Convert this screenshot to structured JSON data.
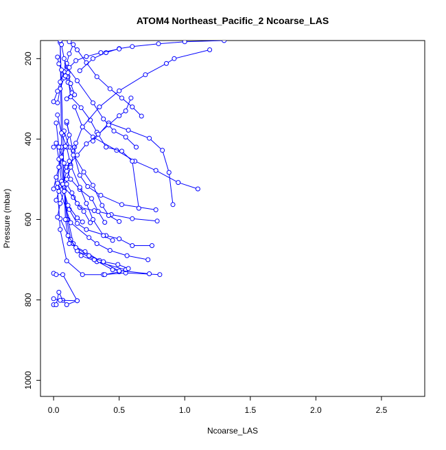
{
  "chart_data": {
    "type": "line",
    "title": "ATOM4 Northeast_Pacific_2 Ncoarse_LAS",
    "xlabel": "Ncoarse_LAS",
    "ylabel": "Pressure (mbar)",
    "xlim": [
      -0.1,
      2.83
    ],
    "ylim": [
      1040,
      155
    ],
    "y_reversed": true,
    "grid": false,
    "x_ticks": [
      0,
      0.5,
      1,
      1.5,
      2,
      2.5
    ],
    "x_tick_labels": [
      "0.0",
      "0.5",
      "1.0",
      "1.5",
      "2.0",
      "2.5"
    ],
    "y_ticks": [
      200,
      400,
      600,
      800,
      1000
    ],
    "y_tick_labels": [
      "200",
      "400",
      "600",
      "800",
      "1000"
    ],
    "series_color": "#0000ff",
    "series": [
      {
        "x": [
          0.0,
          0.02,
          0.04,
          0.07,
          0.1,
          0.18
        ],
        "y": [
          812,
          812,
          781,
          801,
          812,
          802
        ]
      },
      {
        "x": [
          0.0,
          0.02,
          0.07,
          0.18,
          0.05,
          0.0
        ],
        "y": [
          734,
          737,
          737,
          802,
          801,
          797
        ]
      },
      {
        "x": [
          0.81,
          0.55,
          0.38,
          0.22,
          0.1,
          0.05,
          0.03,
          0.05
        ],
        "y": [
          737,
          733,
          737,
          737,
          703,
          625,
          520,
          420
        ]
      },
      {
        "x": [
          0.39,
          0.5,
          0.55,
          0.33,
          0.21,
          0.15,
          0.11,
          0.08
        ],
        "y": [
          737,
          730,
          725,
          705,
          690,
          660,
          600,
          520
        ]
      },
      {
        "x": [
          0.73,
          0.45,
          0.31,
          0.18,
          0.13,
          0.1,
          0.06,
          0.05
        ],
        "y": [
          735,
          725,
          700,
          678,
          650,
          600,
          420,
          160
        ]
      },
      {
        "x": [
          0.5,
          0.35,
          0.24,
          0.12,
          0.09,
          0.07,
          0.05
        ],
        "y": [
          728,
          702,
          680,
          660,
          600,
          390,
          155
        ]
      },
      {
        "x": [
          0.75,
          0.6,
          0.5,
          0.4,
          0.25,
          0.18,
          0.12,
          0.06
        ],
        "y": [
          665,
          665,
          648,
          640,
          625,
          610,
          575,
          510
        ]
      },
      {
        "x": [
          0.72,
          0.56,
          0.43,
          0.33,
          0.27,
          0.13,
          0.03
        ],
        "y": [
          700,
          690,
          677,
          660,
          645,
          608,
          510
        ]
      },
      {
        "x": [
          0.57,
          0.49,
          0.38,
          0.27,
          0.17,
          0.11,
          0.05
        ],
        "y": [
          722,
          712,
          705,
          690,
          670,
          640,
          598
        ]
      },
      {
        "x": [
          0.79,
          0.6,
          0.44,
          0.31,
          0.2,
          0.15,
          0.08,
          0.05
        ],
        "y": [
          604,
          598,
          588,
          578,
          570,
          545,
          520,
          450
        ]
      },
      {
        "x": [
          0.91,
          0.88,
          0.83,
          0.73,
          0.57,
          0.42,
          0.3
        ],
        "y": [
          563,
          483,
          428,
          398,
          378,
          360,
          405
        ]
      },
      {
        "x": [
          1.1,
          0.95,
          0.78,
          0.62,
          0.48,
          0.3,
          0.22,
          0.16
        ],
        "y": [
          524,
          508,
          478,
          455,
          428,
          395,
          370,
          320
        ]
      },
      {
        "x": [
          0.78,
          0.52,
          0.36,
          0.26,
          0.2,
          0.15,
          0.1
        ],
        "y": [
          576,
          563,
          540,
          518,
          490,
          430,
          360
        ]
      },
      {
        "x": [
          0.65,
          0.6,
          0.52,
          0.4,
          0.33,
          0.28,
          0.21,
          0.13,
          0.11
        ],
        "y": [
          572,
          455,
          430,
          420,
          383,
          353,
          322,
          295,
          245
        ]
      },
      {
        "x": [
          0.39,
          0.34,
          0.29,
          0.2,
          0.13,
          0.08,
          0.04,
          0.02
        ],
        "y": [
          607,
          580,
          548,
          525,
          500,
          460,
          420,
          360
        ]
      },
      {
        "x": [
          0.5,
          0.42,
          0.37,
          0.3,
          0.23,
          0.12,
          0.08
        ],
        "y": [
          605,
          590,
          565,
          515,
          482,
          420,
          380
        ]
      },
      {
        "x": [
          0.22,
          0.18,
          0.11,
          0.08,
          0.06,
          0.04,
          0.02,
          0.0
        ],
        "y": [
          606,
          596,
          565,
          530,
          505,
          450,
          410,
          420
        ]
      },
      {
        "x": [
          0.45,
          0.38,
          0.3,
          0.25,
          0.2,
          0.13,
          0.1,
          0.06,
          0.03
        ],
        "y": [
          652,
          640,
          600,
          560,
          520,
          465,
          420,
          385,
          340
        ]
      },
      {
        "x": [
          0.63,
          0.55,
          0.46,
          0.38,
          0.3,
          0.18,
          0.1
        ],
        "y": [
          420,
          395,
          380,
          350,
          310,
          255,
          220
        ]
      },
      {
        "x": [
          0.67,
          0.6,
          0.52,
          0.43,
          0.33,
          0.25,
          0.18,
          0.12
        ],
        "y": [
          343,
          320,
          298,
          275,
          245,
          210,
          178,
          158
        ]
      },
      {
        "x": [
          1.19,
          0.92,
          0.86,
          0.7,
          0.5,
          0.35,
          0.22,
          0.16
        ],
        "y": [
          178,
          200,
          212,
          240,
          280,
          320,
          370,
          420
        ]
      },
      {
        "x": [
          1.3,
          1.0,
          0.8,
          0.6,
          0.5,
          0.4,
          0.3,
          0.2
        ],
        "y": [
          155,
          158,
          163,
          170,
          175,
          185,
          200,
          230
        ]
      },
      {
        "x": [
          0.59,
          0.55,
          0.5,
          0.42,
          0.34,
          0.25,
          0.18,
          0.1
        ],
        "y": [
          298,
          330,
          342,
          365,
          388,
          412,
          440,
          470
        ]
      },
      {
        "x": [
          0.5,
          0.36,
          0.25,
          0.17,
          0.12,
          0.08,
          0.05,
          0.03
        ],
        "y": [
          176,
          185,
          195,
          205,
          222,
          248,
          275,
          310
        ]
      },
      {
        "x": [
          0.0,
          0.03,
          0.05,
          0.08,
          0.1,
          0.12,
          0.15
        ],
        "y": [
          307,
          281,
          258,
          233,
          212,
          188,
          165
        ]
      },
      {
        "x": [
          0.03,
          0.04,
          0.06,
          0.09,
          0.11,
          0.14,
          0.1
        ],
        "y": [
          196,
          213,
          228,
          243,
          259,
          285,
          300
        ]
      },
      {
        "x": [
          0.0,
          0.02,
          0.04,
          0.06,
          0.09,
          0.12,
          0.1
        ],
        "y": [
          524,
          495,
          470,
          445,
          418,
          390,
          356
        ]
      },
      {
        "x": [
          0.03,
          0.05,
          0.08,
          0.1,
          0.13,
          0.15,
          0.17
        ],
        "y": [
          594,
          560,
          530,
          500,
          470,
          440,
          410
        ]
      },
      {
        "x": [
          0.02,
          0.04,
          0.07,
          0.1,
          0.12
        ],
        "y": [
          552,
          530,
          512,
          480,
          455
        ]
      },
      {
        "x": [
          0.28,
          0.23,
          0.18,
          0.14,
          0.1
        ],
        "y": [
          608,
          580,
          560,
          534,
          512
        ]
      },
      {
        "x": [
          0.06,
          0.08,
          0.11,
          0.13,
          0.16
        ],
        "y": [
          165,
          200,
          235,
          262,
          290
        ]
      }
    ]
  }
}
